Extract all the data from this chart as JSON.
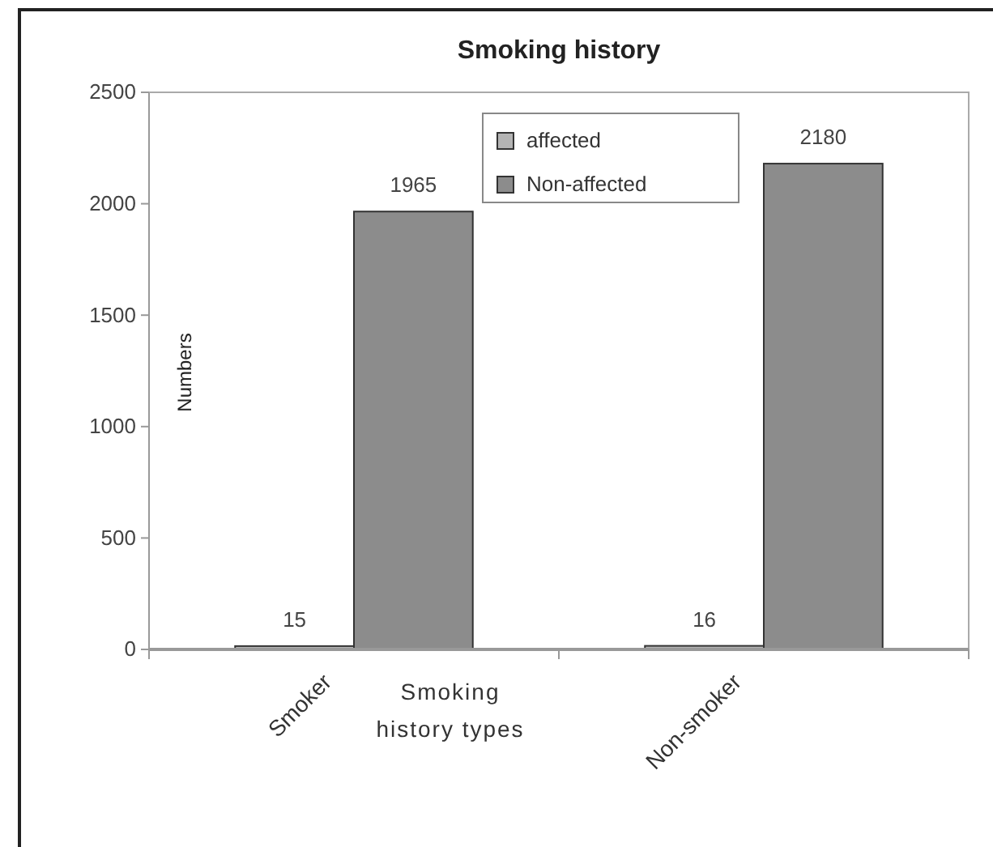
{
  "chart_data": {
    "type": "bar",
    "title": "Smoking history",
    "xlabel": "Smoking history types",
    "ylabel": "Numbers",
    "categories": [
      "Smoker",
      "Non-smoker"
    ],
    "series": [
      {
        "name": "affected",
        "color": "#b4b4b4",
        "values": [
          15,
          16
        ]
      },
      {
        "name": "Non-affected",
        "color": "#8c8c8c",
        "values": [
          1965,
          2180
        ]
      }
    ],
    "ylim": [
      0,
      2500
    ],
    "yticks": [
      0,
      500,
      1000,
      1500,
      2000,
      2500
    ],
    "grid": false,
    "legend": "top right",
    "data_labels": true
  }
}
